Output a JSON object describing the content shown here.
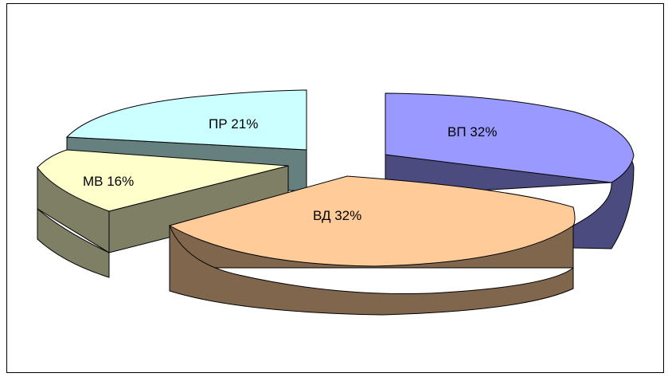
{
  "chart_data": {
    "type": "pie",
    "variant": "3d-exploded",
    "title": "",
    "categories": [
      "ВП",
      "ВД",
      "МВ",
      "ПР"
    ],
    "values": [
      32,
      32,
      16,
      21
    ],
    "labels": [
      "ВП 32%",
      "ВД 32%",
      "МВ 16%",
      "ПР 21%"
    ],
    "colors": {
      "ВП": {
        "top": "#9999ff",
        "side": "#4b4b7f"
      },
      "ВД": {
        "top": "#ffcc99",
        "side": "#7f664c"
      },
      "МВ": {
        "top": "#ffffcc",
        "side": "#7f7f66"
      },
      "ПР": {
        "top": "#ccffff",
        "side": "#667f7f"
      }
    },
    "legend": "none"
  }
}
